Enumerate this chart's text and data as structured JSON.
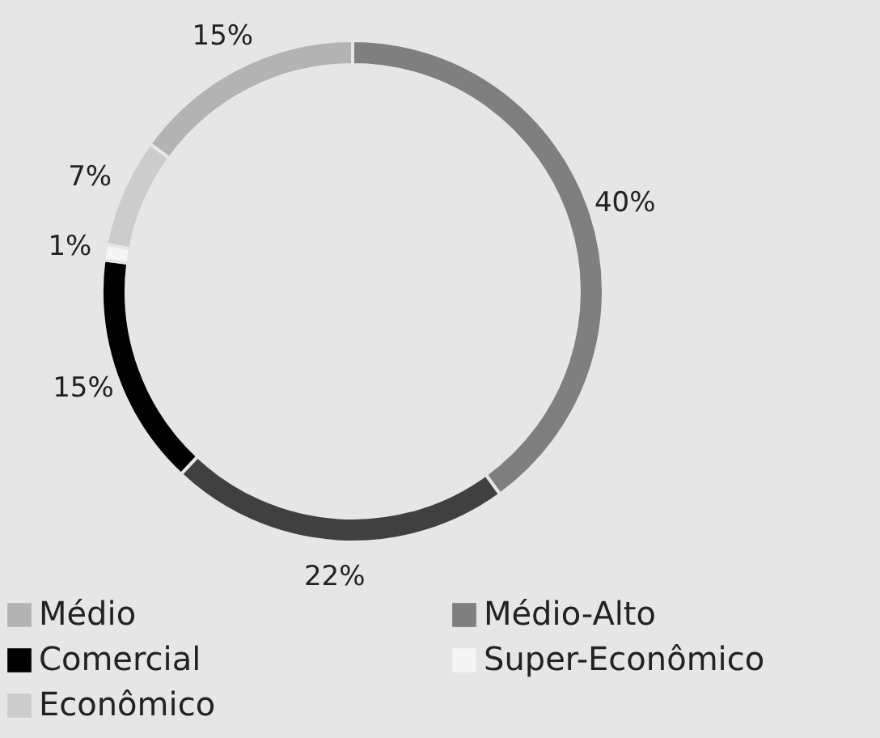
{
  "chart_data": {
    "type": "donut",
    "categories": [
      "Médio",
      "Médio-Alto",
      null,
      "Comercial",
      "Super-Econômico",
      "Econômico"
    ],
    "values": [
      15,
      40,
      22,
      15,
      1,
      7
    ],
    "colors": [
      "#b3b3b3",
      "#7f7f7f",
      "#404040",
      "#000000",
      "#f5f5f5",
      "#cccccc"
    ],
    "value_labels": [
      "15%",
      "40%",
      "22%",
      "15%",
      "1%",
      "7%"
    ],
    "legend": "bottom"
  }
}
